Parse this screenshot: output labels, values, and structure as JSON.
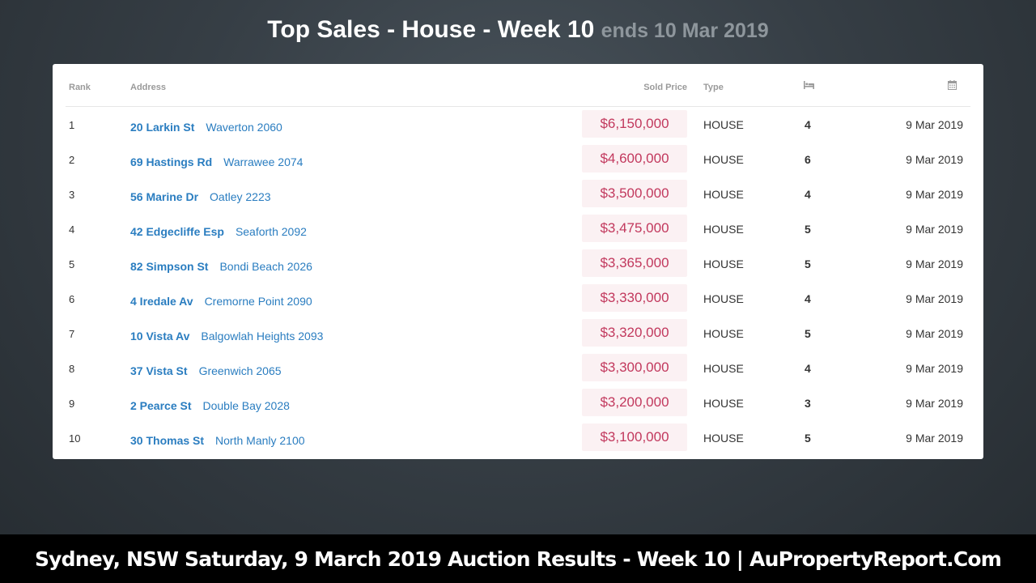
{
  "header": {
    "title": "Top Sales - House - Week 10",
    "subtitle": "ends 10 Mar 2019"
  },
  "table": {
    "columns": {
      "rank": "Rank",
      "address": "Address",
      "sold_price": "Sold Price",
      "type": "Type",
      "beds_icon": "bed-icon",
      "date_icon": "calendar-icon"
    },
    "rows": [
      {
        "rank": "1",
        "street": "20 Larkin St",
        "suburb": "Waverton 2060",
        "price": "$6,150,000",
        "type": "HOUSE",
        "beds": "4",
        "date": "9 Mar 2019"
      },
      {
        "rank": "2",
        "street": "69 Hastings Rd",
        "suburb": "Warrawee 2074",
        "price": "$4,600,000",
        "type": "HOUSE",
        "beds": "6",
        "date": "9 Mar 2019"
      },
      {
        "rank": "3",
        "street": "56 Marine Dr",
        "suburb": "Oatley 2223",
        "price": "$3,500,000",
        "type": "HOUSE",
        "beds": "4",
        "date": "9 Mar 2019"
      },
      {
        "rank": "4",
        "street": "42 Edgecliffe Esp",
        "suburb": "Seaforth 2092",
        "price": "$3,475,000",
        "type": "HOUSE",
        "beds": "5",
        "date": "9 Mar 2019"
      },
      {
        "rank": "5",
        "street": "82 Simpson St",
        "suburb": "Bondi Beach 2026",
        "price": "$3,365,000",
        "type": "HOUSE",
        "beds": "5",
        "date": "9 Mar 2019"
      },
      {
        "rank": "6",
        "street": "4 Iredale Av",
        "suburb": "Cremorne Point 2090",
        "price": "$3,330,000",
        "type": "HOUSE",
        "beds": "4",
        "date": "9 Mar 2019"
      },
      {
        "rank": "7",
        "street": "10 Vista Av",
        "suburb": "Balgowlah Heights 2093",
        "price": "$3,320,000",
        "type": "HOUSE",
        "beds": "5",
        "date": "9 Mar 2019"
      },
      {
        "rank": "8",
        "street": "37 Vista St",
        "suburb": "Greenwich 2065",
        "price": "$3,300,000",
        "type": "HOUSE",
        "beds": "4",
        "date": "9 Mar 2019"
      },
      {
        "rank": "9",
        "street": "2 Pearce St",
        "suburb": "Double Bay 2028",
        "price": "$3,200,000",
        "type": "HOUSE",
        "beds": "3",
        "date": "9 Mar 2019"
      },
      {
        "rank": "10",
        "street": "30 Thomas St",
        "suburb": "North Manly 2100",
        "price": "$3,100,000",
        "type": "HOUSE",
        "beds": "5",
        "date": "9 Mar 2019"
      }
    ]
  },
  "footer": {
    "banner": "Sydney, NSW Saturday, 9 March 2019 Auction Results - Week 10 | AuPropertyReport.Com"
  },
  "colors": {
    "link": "#2a7dc0",
    "price_text": "#c2385d",
    "price_bg": "#fbf1f3",
    "banner_bg": "#000000"
  }
}
